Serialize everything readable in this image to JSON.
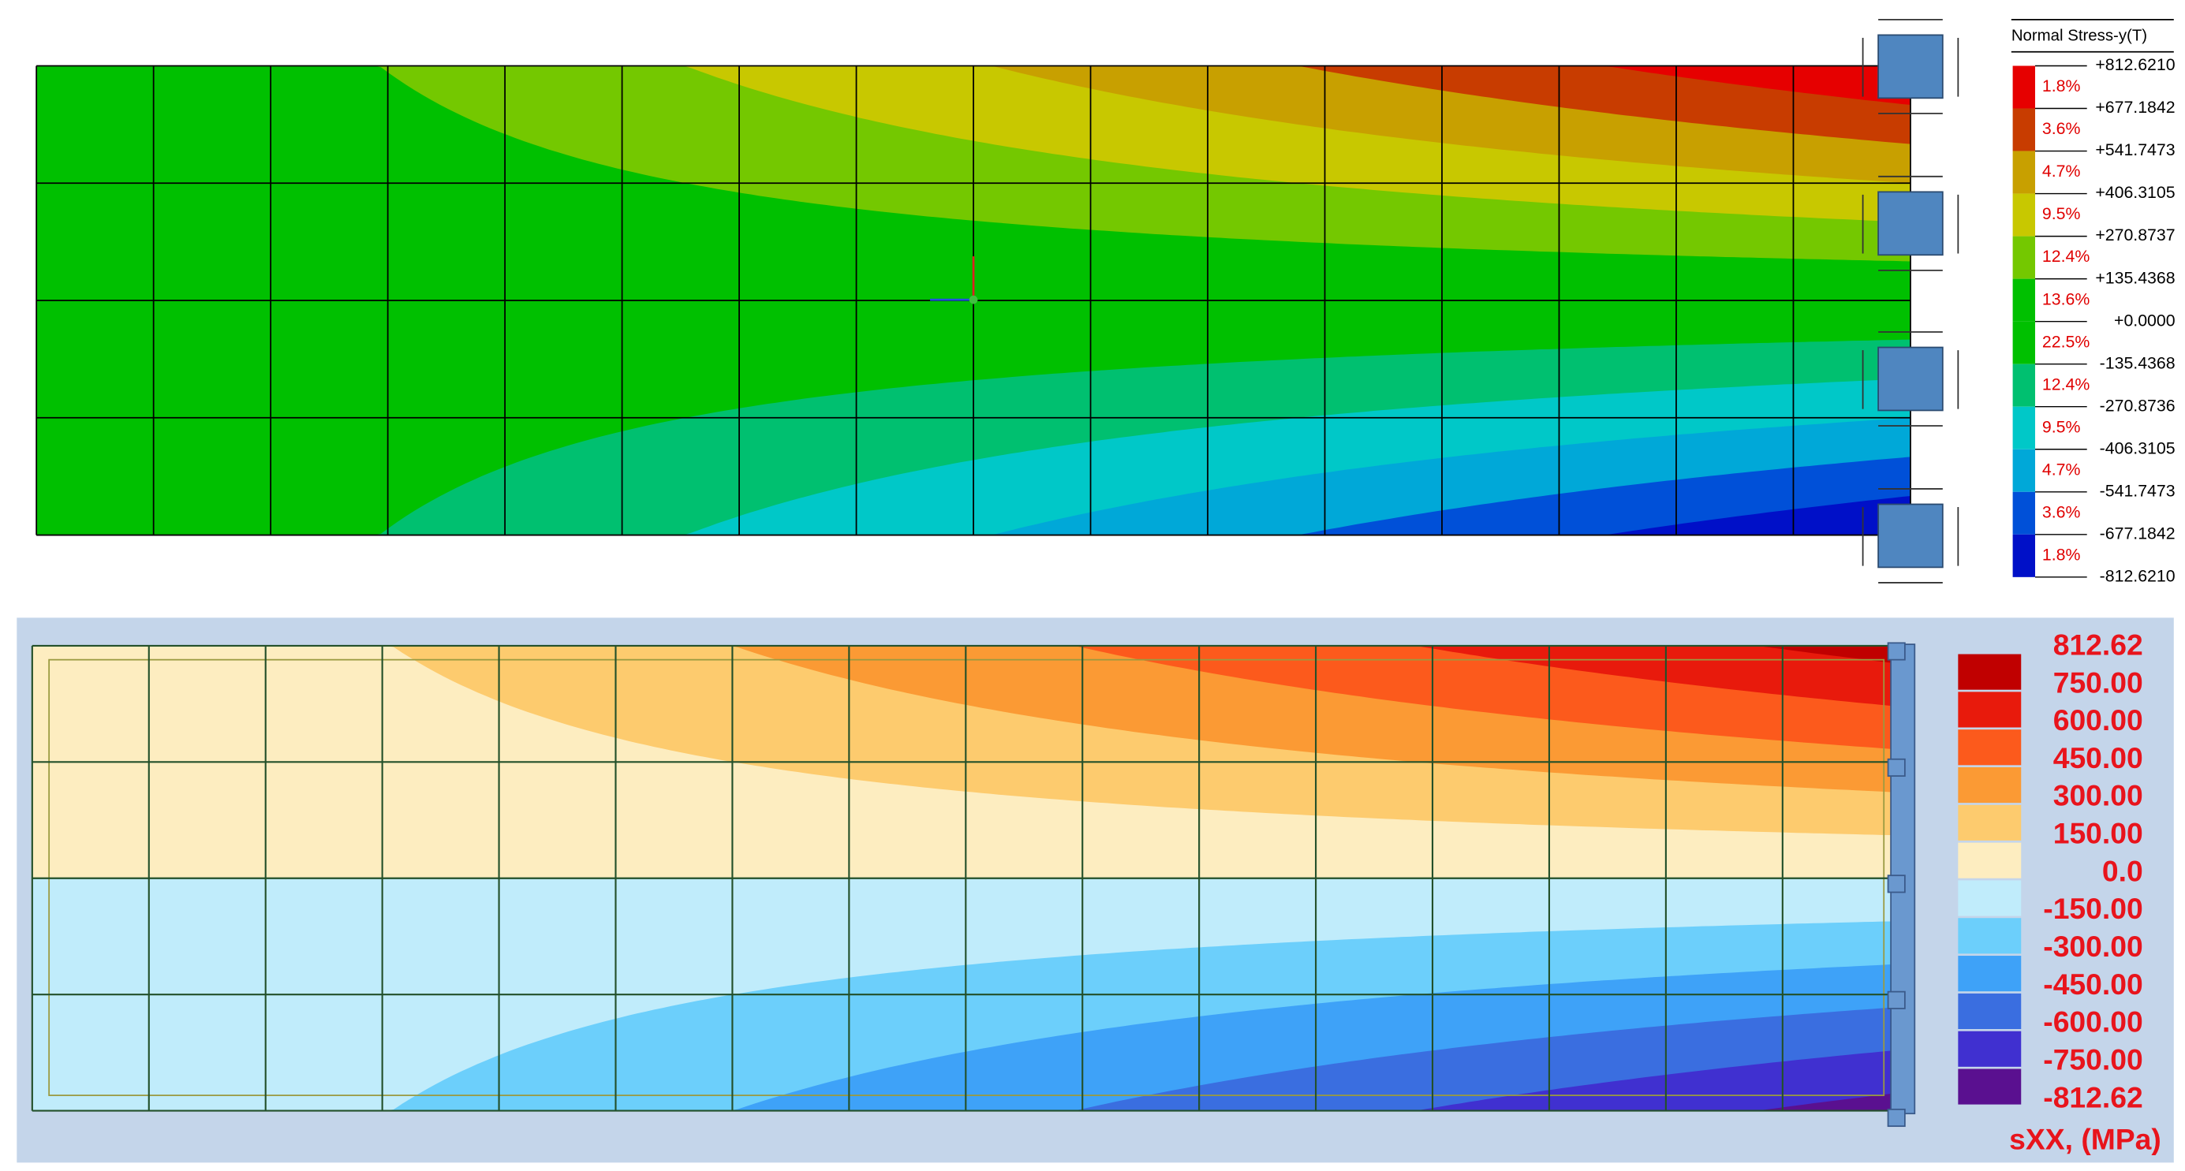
{
  "top_panel": {
    "legend": {
      "title": "Normal Stress-y(T)",
      "levels": [
        "+812.6210",
        "+677.1842",
        "+541.7473",
        "+406.3105",
        "+270.8737",
        "+135.4368",
        "+0.0000",
        "-135.4368",
        "-270.8736",
        "-406.3105",
        "-541.7473",
        "-677.1842",
        "-812.6210"
      ],
      "percentages": [
        "1.8%",
        "3.6%",
        "4.7%",
        "9.5%",
        "12.4%",
        "13.6%",
        "22.5%",
        "12.4%",
        "9.5%",
        "4.7%",
        "3.6%",
        "1.8%"
      ]
    }
  },
  "bottom_panel": {
    "legend": {
      "levels": [
        "812.62",
        "750.00",
        "600.00",
        "450.00",
        "300.00",
        "150.00",
        "0.0",
        "-150.00",
        "-300.00",
        "-450.00",
        "-600.00",
        "-750.00",
        "-812.62"
      ],
      "unit": "sXX, (MPa)"
    }
  }
}
